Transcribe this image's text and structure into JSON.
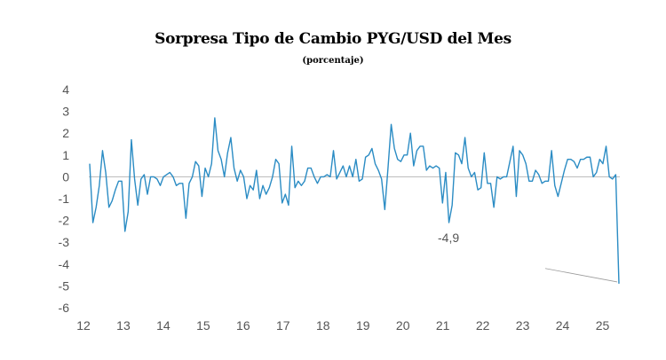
{
  "chart_data": {
    "type": "line",
    "title": "Sorpresa  Tipo de Cambio PYG/USD del Mes",
    "subtitle": "(porcentaje)",
    "xlabel": "",
    "ylabel": "",
    "ylim": [
      -6,
      4
    ],
    "xlim": [
      12,
      25.3
    ],
    "y_ticks": [
      4,
      3,
      2,
      1,
      0,
      -1,
      -2,
      -3,
      -4,
      -5,
      -6
    ],
    "x_ticks": [
      "12",
      "13",
      "14",
      "15",
      "16",
      "17",
      "18",
      "19",
      "20",
      "21",
      "22",
      "23",
      "24",
      "25"
    ],
    "annotation": "-4,9",
    "line_color": "#2b8cc4",
    "series": [
      {
        "name": "Sorpresa",
        "values": [
          0.6,
          -2.1,
          -1.4,
          -0.4,
          1.2,
          0.2,
          -1.4,
          -1.1,
          -0.6,
          -0.2,
          -0.2,
          -2.5,
          -1.6,
          1.7,
          -0.1,
          -1.3,
          -0.1,
          0.1,
          -0.8,
          0.0,
          0.0,
          -0.1,
          -0.4,
          0.0,
          0.1,
          0.2,
          0.0,
          -0.4,
          -0.3,
          -0.3,
          -1.9,
          -0.3,
          0.0,
          0.7,
          0.5,
          -0.9,
          0.4,
          0.0,
          0.6,
          2.7,
          1.2,
          0.8,
          0.0,
          1.1,
          1.8,
          0.4,
          -0.2,
          0.3,
          0.0,
          -1.0,
          -0.4,
          -0.6,
          0.3,
          -1.0,
          -0.4,
          -0.8,
          -0.5,
          0.0,
          0.8,
          0.6,
          -1.2,
          -0.8,
          -1.3,
          1.4,
          -0.5,
          -0.2,
          -0.4,
          -0.2,
          0.4,
          0.4,
          0.0,
          -0.3,
          0.0,
          0.0,
          0.1,
          0.0,
          1.2,
          -0.1,
          0.2,
          0.5,
          0.0,
          0.5,
          0.0,
          0.8,
          -0.2,
          -0.1,
          0.9,
          1.0,
          1.3,
          0.6,
          0.3,
          -0.1,
          -1.5,
          0.4,
          2.4,
          1.3,
          0.8,
          0.7,
          1.0,
          1.0,
          2.0,
          0.5,
          1.2,
          1.4,
          1.4,
          0.3,
          0.5,
          0.4,
          0.5,
          0.4,
          -1.2,
          0.2,
          -2.1,
          -1.3,
          1.1,
          1.0,
          0.6,
          1.8,
          0.4,
          0.0,
          0.2,
          -0.6,
          -0.5,
          1.1,
          -0.3,
          -0.3,
          -1.4,
          0.0,
          -0.1,
          0.0,
          0.0,
          0.7,
          1.4,
          -0.9,
          1.2,
          1.0,
          0.6,
          -0.2,
          -0.2,
          0.3,
          0.1,
          -0.3,
          -0.2,
          -0.2,
          1.2,
          -0.4,
          -0.9,
          -0.3,
          0.3,
          0.8,
          0.8,
          0.7,
          0.4,
          0.8,
          0.8,
          0.9,
          0.9,
          0.0,
          0.2,
          0.8,
          0.6,
          1.4,
          0.0,
          -0.1,
          0.1,
          -4.9
        ]
      }
    ]
  }
}
